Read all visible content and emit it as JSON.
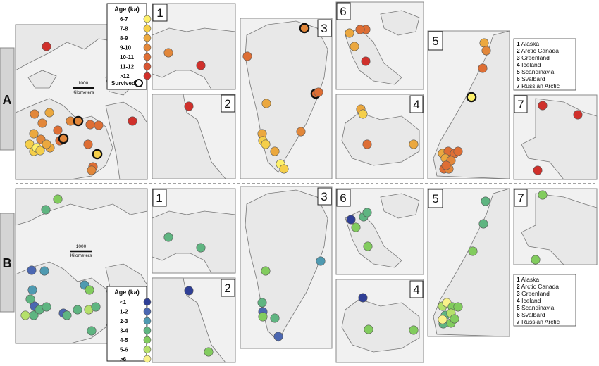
{
  "colors": {
    "A": [
      "#fdf06a",
      "#f5cf4a",
      "#eba83f",
      "#e2873a",
      "#de6e34",
      "#d65533",
      "#d0302b"
    ],
    "B": [
      "#2f3f96",
      "#4b67b1",
      "#4f9ab1",
      "#5fb581",
      "#82cc5e",
      "#b5e06a",
      "#f9f28a"
    ],
    "survived": "#111111"
  },
  "legendA": {
    "title": "Age (ka)",
    "items": [
      "6-7",
      "7-8",
      "8-9",
      "9-10",
      "10-11",
      "11-12",
      ">12"
    ],
    "survived": "Survived"
  },
  "legendB": {
    "title": "Age (ka)",
    "items": [
      "<1",
      "1-2",
      "2-3",
      "3-4",
      "4-5",
      "5-6",
      ">6"
    ]
  },
  "rows": [
    "A",
    "B"
  ],
  "panel_numbers": [
    "1",
    "2",
    "3",
    "6",
    "4",
    "5",
    "7"
  ],
  "scale": {
    "value": "1000",
    "unit": "Kilometers"
  },
  "regions": [
    {
      "num": "1",
      "name": "Alaska"
    },
    {
      "num": "2",
      "name": "Arctic Canada"
    },
    {
      "num": "3",
      "name": "Greenland"
    },
    {
      "num": "4",
      "name": "Iceland"
    },
    {
      "num": "5",
      "name": "Scandinavia"
    },
    {
      "num": "6",
      "name": "Svalbard"
    },
    {
      "num": "7",
      "name": "Russian Arctic"
    }
  ]
}
